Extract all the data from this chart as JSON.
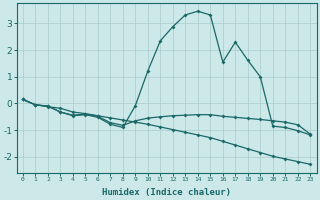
{
  "xlabel": "Humidex (Indice chaleur)",
  "bg_color": "#cce8e8",
  "grid_color": "#aacccc",
  "line_color": "#1a6868",
  "xlim": [
    -0.5,
    23.5
  ],
  "ylim": [
    -2.6,
    3.75
  ],
  "yticks": [
    -2,
    -1,
    0,
    1,
    2,
    3
  ],
  "xticks": [
    0,
    1,
    2,
    3,
    4,
    5,
    6,
    7,
    8,
    9,
    10,
    11,
    12,
    13,
    14,
    15,
    16,
    17,
    18,
    19,
    20,
    21,
    22,
    23
  ],
  "line1_x": [
    0,
    1,
    2,
    3,
    4,
    5,
    6,
    7,
    8,
    9,
    10,
    11,
    12,
    13,
    14,
    15,
    16,
    17,
    18,
    19,
    20,
    21,
    22,
    23
  ],
  "line1_y": [
    0.15,
    -0.05,
    -0.12,
    -0.18,
    -0.32,
    -0.38,
    -0.46,
    -0.54,
    -0.62,
    -0.7,
    -0.78,
    -0.88,
    -0.98,
    -1.08,
    -1.18,
    -1.28,
    -1.42,
    -1.56,
    -1.7,
    -1.84,
    -1.98,
    -2.08,
    -2.18,
    -2.28
  ],
  "line2_x": [
    0,
    1,
    2,
    3,
    4,
    5,
    6,
    7,
    8,
    9,
    10,
    11,
    12,
    13,
    14,
    15,
    16,
    17,
    18,
    19,
    20,
    21,
    22,
    23
  ],
  "line2_y": [
    0.15,
    -0.05,
    -0.1,
    -0.32,
    -0.44,
    -0.4,
    -0.48,
    -0.72,
    -0.82,
    -0.65,
    -0.55,
    -0.5,
    -0.46,
    -0.44,
    -0.42,
    -0.42,
    -0.48,
    -0.52,
    -0.56,
    -0.6,
    -0.65,
    -0.7,
    -0.8,
    -1.15
  ],
  "line3_x": [
    0,
    1,
    2,
    3,
    4,
    5,
    6,
    7,
    8,
    9,
    10,
    11,
    12,
    13,
    14,
    15,
    16,
    17,
    18,
    19,
    20,
    21,
    22,
    23
  ],
  "line3_y": [
    0.15,
    -0.05,
    -0.1,
    -0.32,
    -0.46,
    -0.42,
    -0.52,
    -0.78,
    -0.9,
    -0.08,
    1.22,
    2.35,
    2.88,
    3.32,
    3.46,
    3.32,
    1.55,
    2.3,
    1.62,
    1.0,
    -0.85,
    -0.9,
    -1.02,
    -1.18
  ]
}
